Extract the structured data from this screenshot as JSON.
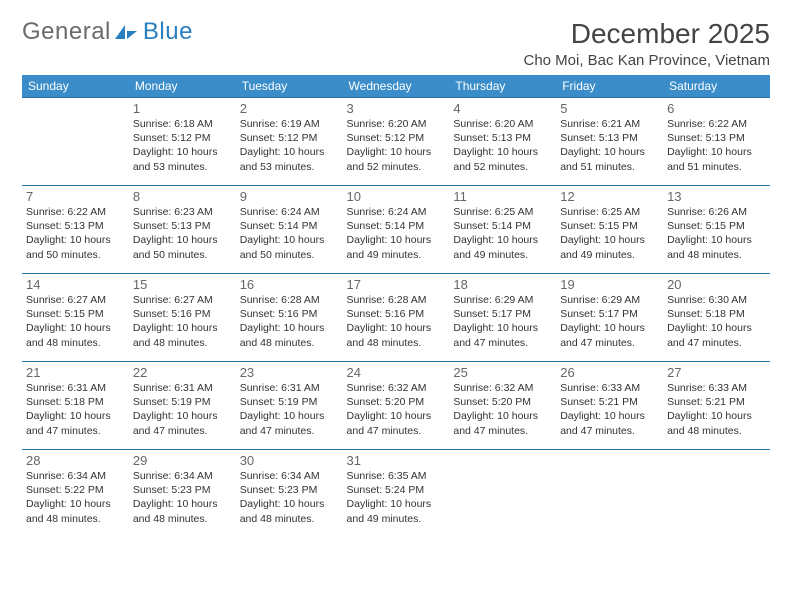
{
  "logo": {
    "word1": "General",
    "word2": "Blue"
  },
  "header": {
    "month_title": "December 2025",
    "location": "Cho Moi, Bac Kan Province, Vietnam"
  },
  "colors": {
    "header_bg": "#3a8dc9",
    "header_text": "#ffffff",
    "row_border": "#2a6fa0",
    "logo_gray": "#6b6b6b",
    "logo_blue": "#2a7fbf",
    "text": "#333333",
    "daynum": "#666666"
  },
  "typography": {
    "month_title_fontsize": 28,
    "location_fontsize": 15,
    "th_fontsize": 12,
    "daynum_fontsize": 13,
    "info_fontsize": 10.5
  },
  "day_headers": [
    "Sunday",
    "Monday",
    "Tuesday",
    "Wednesday",
    "Thursday",
    "Friday",
    "Saturday"
  ],
  "weeks": [
    [
      null,
      {
        "n": "1",
        "sr": "6:18 AM",
        "ss": "5:12 PM",
        "dl": "10 hours and 53 minutes."
      },
      {
        "n": "2",
        "sr": "6:19 AM",
        "ss": "5:12 PM",
        "dl": "10 hours and 53 minutes."
      },
      {
        "n": "3",
        "sr": "6:20 AM",
        "ss": "5:12 PM",
        "dl": "10 hours and 52 minutes."
      },
      {
        "n": "4",
        "sr": "6:20 AM",
        "ss": "5:13 PM",
        "dl": "10 hours and 52 minutes."
      },
      {
        "n": "5",
        "sr": "6:21 AM",
        "ss": "5:13 PM",
        "dl": "10 hours and 51 minutes."
      },
      {
        "n": "6",
        "sr": "6:22 AM",
        "ss": "5:13 PM",
        "dl": "10 hours and 51 minutes."
      }
    ],
    [
      {
        "n": "7",
        "sr": "6:22 AM",
        "ss": "5:13 PM",
        "dl": "10 hours and 50 minutes."
      },
      {
        "n": "8",
        "sr": "6:23 AM",
        "ss": "5:13 PM",
        "dl": "10 hours and 50 minutes."
      },
      {
        "n": "9",
        "sr": "6:24 AM",
        "ss": "5:14 PM",
        "dl": "10 hours and 50 minutes."
      },
      {
        "n": "10",
        "sr": "6:24 AM",
        "ss": "5:14 PM",
        "dl": "10 hours and 49 minutes."
      },
      {
        "n": "11",
        "sr": "6:25 AM",
        "ss": "5:14 PM",
        "dl": "10 hours and 49 minutes."
      },
      {
        "n": "12",
        "sr": "6:25 AM",
        "ss": "5:15 PM",
        "dl": "10 hours and 49 minutes."
      },
      {
        "n": "13",
        "sr": "6:26 AM",
        "ss": "5:15 PM",
        "dl": "10 hours and 48 minutes."
      }
    ],
    [
      {
        "n": "14",
        "sr": "6:27 AM",
        "ss": "5:15 PM",
        "dl": "10 hours and 48 minutes."
      },
      {
        "n": "15",
        "sr": "6:27 AM",
        "ss": "5:16 PM",
        "dl": "10 hours and 48 minutes."
      },
      {
        "n": "16",
        "sr": "6:28 AM",
        "ss": "5:16 PM",
        "dl": "10 hours and 48 minutes."
      },
      {
        "n": "17",
        "sr": "6:28 AM",
        "ss": "5:16 PM",
        "dl": "10 hours and 48 minutes."
      },
      {
        "n": "18",
        "sr": "6:29 AM",
        "ss": "5:17 PM",
        "dl": "10 hours and 47 minutes."
      },
      {
        "n": "19",
        "sr": "6:29 AM",
        "ss": "5:17 PM",
        "dl": "10 hours and 47 minutes."
      },
      {
        "n": "20",
        "sr": "6:30 AM",
        "ss": "5:18 PM",
        "dl": "10 hours and 47 minutes."
      }
    ],
    [
      {
        "n": "21",
        "sr": "6:31 AM",
        "ss": "5:18 PM",
        "dl": "10 hours and 47 minutes."
      },
      {
        "n": "22",
        "sr": "6:31 AM",
        "ss": "5:19 PM",
        "dl": "10 hours and 47 minutes."
      },
      {
        "n": "23",
        "sr": "6:31 AM",
        "ss": "5:19 PM",
        "dl": "10 hours and 47 minutes."
      },
      {
        "n": "24",
        "sr": "6:32 AM",
        "ss": "5:20 PM",
        "dl": "10 hours and 47 minutes."
      },
      {
        "n": "25",
        "sr": "6:32 AM",
        "ss": "5:20 PM",
        "dl": "10 hours and 47 minutes."
      },
      {
        "n": "26",
        "sr": "6:33 AM",
        "ss": "5:21 PM",
        "dl": "10 hours and 47 minutes."
      },
      {
        "n": "27",
        "sr": "6:33 AM",
        "ss": "5:21 PM",
        "dl": "10 hours and 48 minutes."
      }
    ],
    [
      {
        "n": "28",
        "sr": "6:34 AM",
        "ss": "5:22 PM",
        "dl": "10 hours and 48 minutes."
      },
      {
        "n": "29",
        "sr": "6:34 AM",
        "ss": "5:23 PM",
        "dl": "10 hours and 48 minutes."
      },
      {
        "n": "30",
        "sr": "6:34 AM",
        "ss": "5:23 PM",
        "dl": "10 hours and 48 minutes."
      },
      {
        "n": "31",
        "sr": "6:35 AM",
        "ss": "5:24 PM",
        "dl": "10 hours and 49 minutes."
      },
      null,
      null,
      null
    ]
  ],
  "labels": {
    "sunrise": "Sunrise: ",
    "sunset": "Sunset: ",
    "daylight": "Daylight: "
  }
}
